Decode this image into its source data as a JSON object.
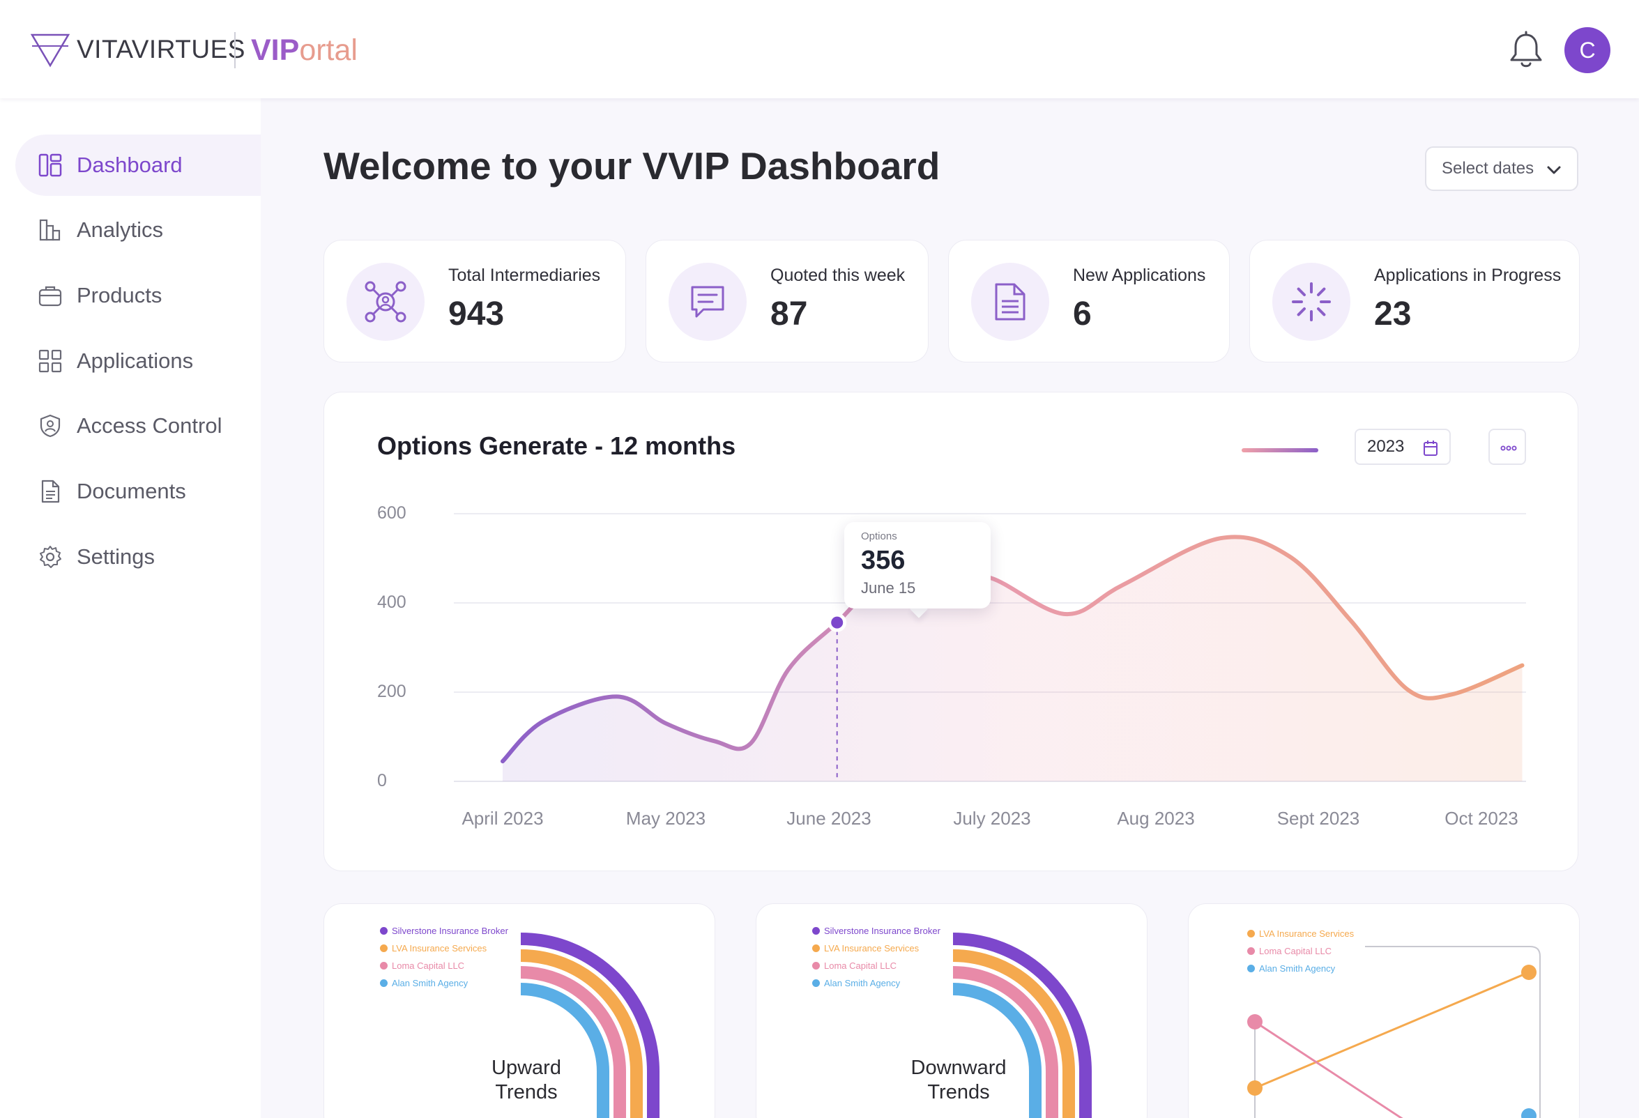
{
  "brand": {
    "company": "VITAVIRTUES",
    "portal_bold": "VIP",
    "portal_rest": "ortal"
  },
  "header": {
    "avatar_initial": "C"
  },
  "sidebar": {
    "items": [
      {
        "label": "Dashboard",
        "icon": "dashboard-icon",
        "active": true
      },
      {
        "label": "Analytics",
        "icon": "bar-chart-icon"
      },
      {
        "label": "Products",
        "icon": "briefcase-icon"
      },
      {
        "label": "Applications",
        "icon": "grid-icon"
      },
      {
        "label": "Access Control",
        "icon": "shield-user-icon"
      },
      {
        "label": "Documents",
        "icon": "document-icon"
      },
      {
        "label": "Settings",
        "icon": "gear-icon"
      }
    ]
  },
  "main": {
    "title": "Welcome to your VVIP Dashboard",
    "date_select_placeholder": "Select dates",
    "stats": [
      {
        "label": "Total Intermediaries",
        "value": "943",
        "icon": "network-icon"
      },
      {
        "label": "Quoted this week",
        "value": "87",
        "icon": "message-icon"
      },
      {
        "label": "New Applications",
        "value": "6",
        "icon": "file-text-icon"
      },
      {
        "label": "Applications in Progress",
        "value": "23",
        "icon": "loader-icon"
      }
    ]
  },
  "options_chart": {
    "title": "Options Generate - 12 months",
    "year": "2023",
    "tooltip": {
      "label": "Options",
      "value": "356",
      "date": "June 15"
    }
  },
  "chart_data": {
    "type": "area",
    "title": "Options Generate - 12 months",
    "ylim": [
      0,
      600
    ],
    "yticks": [
      "600",
      "400",
      "200",
      "0"
    ],
    "x_tick_labels": [
      "April 2023",
      "May 2023",
      "June 2023",
      "July 2023",
      "Aug 2023",
      "Sept 2023",
      "Oct 2023"
    ],
    "x": [
      0,
      0.25,
      0.7,
      1.0,
      1.3,
      1.52,
      1.75,
      2.05,
      2.35,
      2.75,
      3.0,
      3.45,
      3.8,
      4.4,
      4.82,
      5.2,
      5.55,
      5.82,
      6.25
    ],
    "values": [
      45,
      135,
      190,
      130,
      90,
      85,
      250,
      356,
      455,
      460,
      455,
      375,
      440,
      545,
      505,
      360,
      205,
      195,
      260
    ],
    "grid": true,
    "highlight": {
      "x": 2.05,
      "value": 356,
      "label": "June 15"
    },
    "gradient": [
      "#8b5fc8",
      "#e89ab0",
      "#eea27f"
    ]
  },
  "trend_cards": [
    {
      "title_line1": "Upward",
      "title_line2": "Trends",
      "legend": [
        {
          "label": "Silverstone Insurance Broker",
          "color": "#7d47cc"
        },
        {
          "label": "LVA Insurance Services",
          "color": "#f5a94e"
        },
        {
          "label": "Loma Capital LLC",
          "color": "#e88aa8"
        },
        {
          "label": "Alan Smith Agency",
          "color": "#5aaee6"
        }
      ]
    },
    {
      "title_line1": "Downward",
      "title_line2": "Trends",
      "legend": [
        {
          "label": "Silverstone Insurance Broker",
          "color": "#7d47cc"
        },
        {
          "label": "LVA Insurance Services",
          "color": "#f5a94e"
        },
        {
          "label": "Loma Capital LLC",
          "color": "#e88aa8"
        },
        {
          "label": "Alan Smith Agency",
          "color": "#5aaee6"
        }
      ]
    },
    {
      "legend": [
        {
          "label": "LVA Insurance Services",
          "color": "#f5a94e"
        },
        {
          "label": "Loma Capital LLC",
          "color": "#e88aa8"
        },
        {
          "label": "Alan Smith Agency",
          "color": "#5aaee6"
        }
      ]
    }
  ]
}
